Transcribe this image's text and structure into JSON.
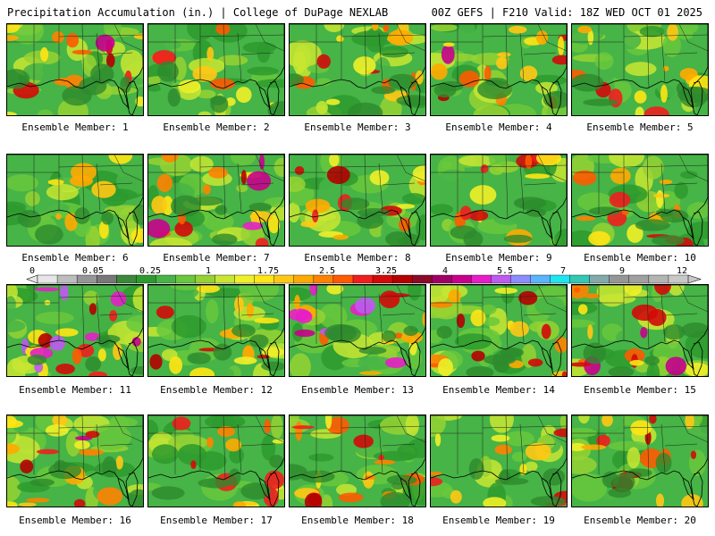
{
  "header": {
    "title": "Precipitation Accumulation (in.) | College of DuPage NEXLAB",
    "run_info": "00Z GEFS | F210 Valid: 18Z WED OCT 01 2025"
  },
  "members": [
    {
      "label": "Ensemble Member: 1",
      "intensity": 0.45,
      "seed": 11
    },
    {
      "label": "Ensemble Member: 2",
      "intensity": 0.2,
      "seed": 23
    },
    {
      "label": "Ensemble Member: 3",
      "intensity": 0.35,
      "seed": 37
    },
    {
      "label": "Ensemble Member: 4",
      "intensity": 0.5,
      "seed": 41
    },
    {
      "label": "Ensemble Member: 5",
      "intensity": 0.35,
      "seed": 53
    },
    {
      "label": "Ensemble Member: 6",
      "intensity": 0.15,
      "seed": 61
    },
    {
      "label": "Ensemble Member: 7",
      "intensity": 0.6,
      "seed": 73
    },
    {
      "label": "Ensemble Member: 8",
      "intensity": 0.4,
      "seed": 89
    },
    {
      "label": "Ensemble Member: 9",
      "intensity": 0.25,
      "seed": 97
    },
    {
      "label": "Ensemble Member: 10",
      "intensity": 0.45,
      "seed": 103
    },
    {
      "label": "Ensemble Member: 11",
      "intensity": 0.75,
      "seed": 113
    },
    {
      "label": "Ensemble Member: 12",
      "intensity": 0.4,
      "seed": 127
    },
    {
      "label": "Ensemble Member: 13",
      "intensity": 0.7,
      "seed": 131
    },
    {
      "label": "Ensemble Member: 14",
      "intensity": 0.55,
      "seed": 149
    },
    {
      "label": "Ensemble Member: 15",
      "intensity": 0.55,
      "seed": 157
    },
    {
      "label": "Ensemble Member: 16",
      "intensity": 0.55,
      "seed": 163
    },
    {
      "label": "Ensemble Member: 17",
      "intensity": 0.35,
      "seed": 179
    },
    {
      "label": "Ensemble Member: 18",
      "intensity": 0.5,
      "seed": 181
    },
    {
      "label": "Ensemble Member: 19",
      "intensity": 0.25,
      "seed": 191
    },
    {
      "label": "Ensemble Member: 20",
      "intensity": 0.4,
      "seed": 199
    }
  ],
  "legend": {
    "ticks": [
      "0",
      "0.05",
      "0.25",
      "1",
      "1.75",
      "2.5",
      "3.25",
      "4",
      "5.5",
      "7",
      "9",
      "12"
    ],
    "colors": [
      "#e6e6e6",
      "#bdbdbd",
      "#969696",
      "#787878",
      "#3a8a3a",
      "#2d9a2d",
      "#46b446",
      "#69c83c",
      "#96d232",
      "#c8e632",
      "#f0f028",
      "#ffe614",
      "#ffc814",
      "#ffaa00",
      "#ff8200",
      "#ff5a00",
      "#f01e1e",
      "#d20a0a",
      "#b40000",
      "#8c0a28",
      "#a00064",
      "#c8008c",
      "#e61ec8",
      "#be5af0",
      "#8c8cff",
      "#5ab4ff",
      "#1ee6f0",
      "#32c8b4",
      "#82aaaa",
      "#969696",
      "#a0a0a0",
      "#b4b4b4",
      "#c8c8c8"
    ]
  }
}
